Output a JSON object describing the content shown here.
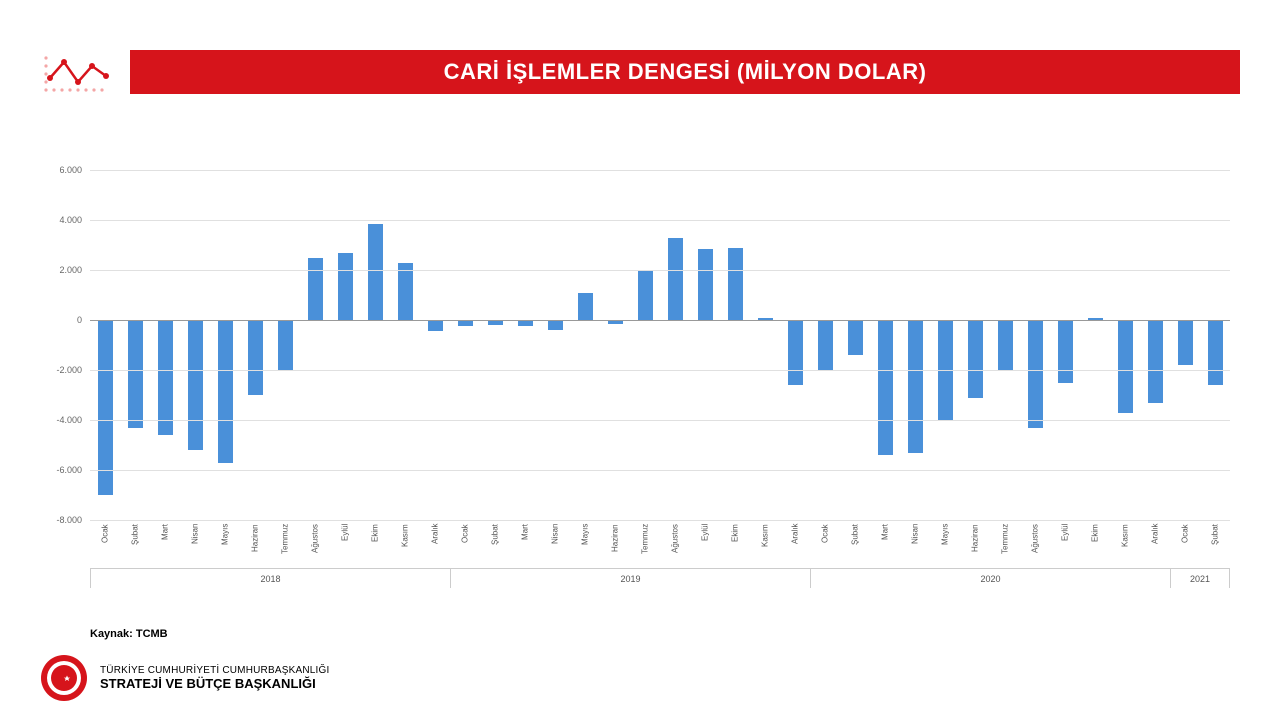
{
  "colors": {
    "title_bar": "#d6141b",
    "title_text": "#ffffff",
    "bar": "#4a90d9",
    "grid": "#e0e0e0",
    "zero_line": "#999999",
    "icon_red": "#d6141b",
    "icon_pink": "#f4a6a6",
    "seal_red": "#d6141b",
    "seal_white": "#ffffff"
  },
  "title": "CARİ İŞLEMLER DENGESİ (MİLYON DOLAR)",
  "chart": {
    "type": "bar",
    "ylim": [
      -8000,
      6000
    ],
    "ytick_step": 2000,
    "ytick_labels": [
      "-8.000",
      "-6.000",
      "-4.000",
      "-2.000",
      "0",
      "2.000",
      "4.000",
      "6.000"
    ],
    "months": [
      "Ocak",
      "Şubat",
      "Mart",
      "Nisan",
      "Mayıs",
      "Haziran",
      "Temmuz",
      "Ağustos",
      "Eylül",
      "Ekim",
      "Kasım",
      "Aralık"
    ],
    "years": [
      {
        "label": "2018",
        "count": 12
      },
      {
        "label": "2019",
        "count": 12
      },
      {
        "label": "2020",
        "count": 12
      },
      {
        "label": "2021",
        "count": 2
      }
    ],
    "values": [
      -7000,
      -4300,
      -4600,
      -5200,
      -5700,
      -3000,
      -2000,
      2500,
      2700,
      3850,
      2300,
      -450,
      -250,
      -200,
      -250,
      -400,
      1100,
      -150,
      2000,
      3300,
      2850,
      2900,
      100,
      -2600,
      -2000,
      -1400,
      -5400,
      -5300,
      -4000,
      -3100,
      -2000,
      -4300,
      -2500,
      100,
      -3700,
      -3300,
      -1800,
      -2600
    ]
  },
  "source_label": "Kaynak: TCMB",
  "org": {
    "line1": "TÜRKİYE CUMHURİYETİ CUMHURBAŞKANLIĞI",
    "line2": "STRATEJİ VE BÜTÇE BAŞKANLIĞI"
  }
}
